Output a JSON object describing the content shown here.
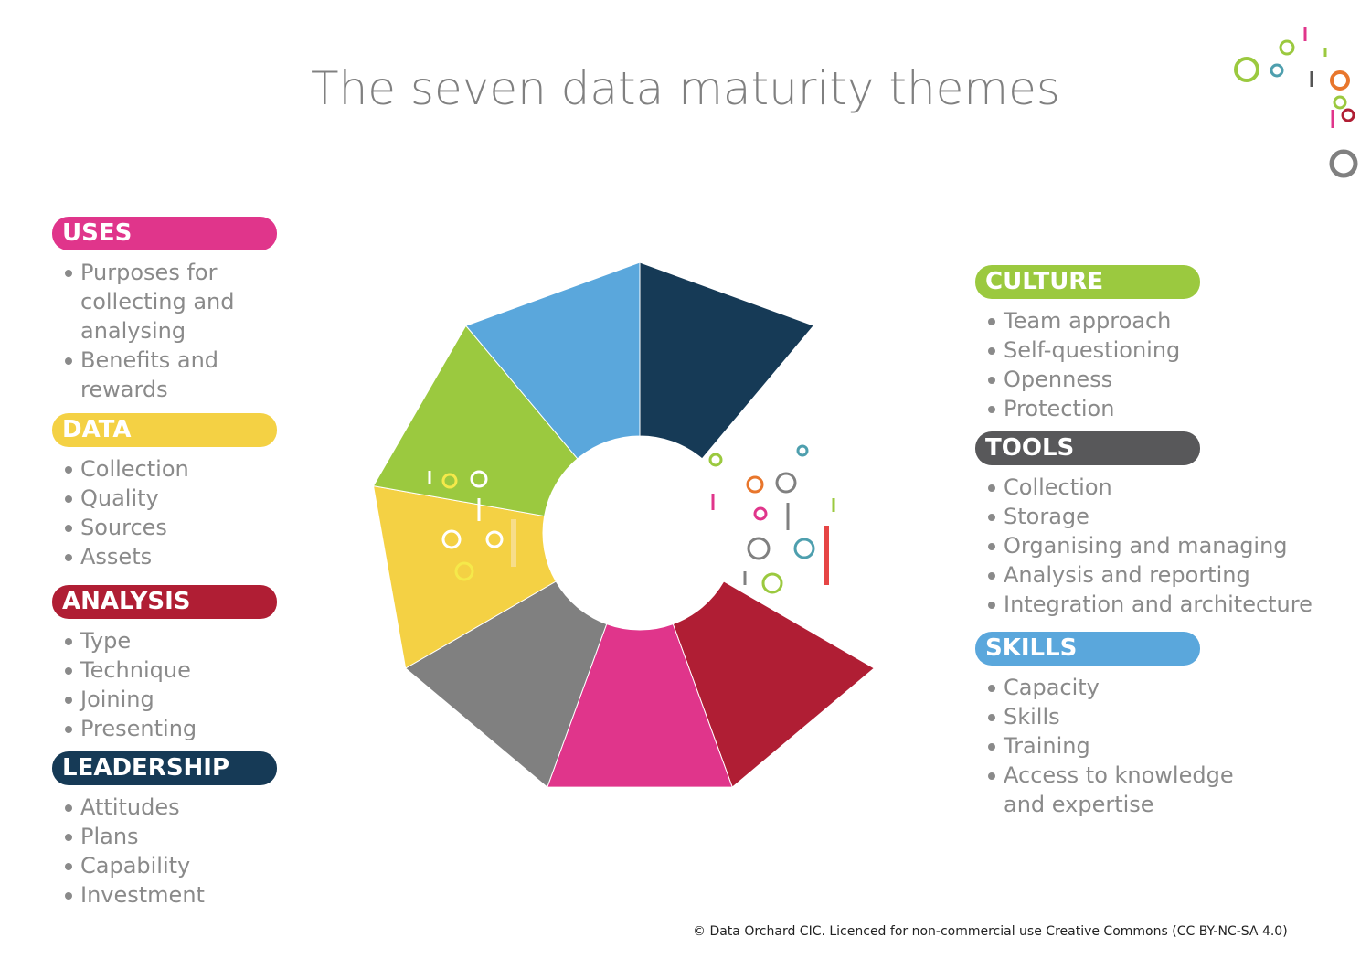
{
  "title": "The seven data maturity themes",
  "themes": [
    {
      "name": "USES",
      "items": [
        "Purposes for collecting and analysing",
        "Benefits and rewards"
      ]
    },
    {
      "name": "DATA",
      "items": [
        "Collection",
        "Quality",
        "Sources",
        "Assets"
      ]
    },
    {
      "name": "ANALYSIS",
      "items": [
        "Type",
        "Technique",
        "Joining",
        "Presenting"
      ]
    },
    {
      "name": "LEADERSHIP",
      "items": [
        "Attitudes",
        "Plans",
        "Capability",
        "Investment"
      ]
    },
    {
      "name": "CULTURE",
      "items": [
        "Team approach",
        "Self-questioning",
        "Openness",
        "Protection"
      ]
    },
    {
      "name": "TOOLS",
      "items": [
        "Collection",
        "Storage",
        "Organising and managing",
        "Analysis and reporting",
        "Integration and architecture"
      ]
    },
    {
      "name": "SKILLS",
      "items": [
        "Capacity",
        "Skills",
        "Training",
        "Access to knowledge and expertise"
      ]
    }
  ],
  "footer": "© Data Orchard CIC. Licenced for non-commercial use Creative Commons (CC BY-NC-SA 4.0)"
}
